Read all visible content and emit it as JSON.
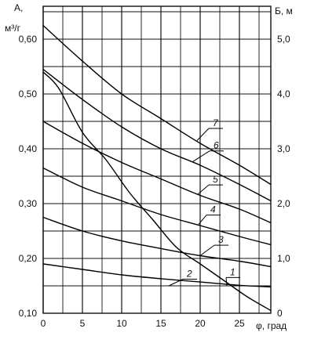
{
  "chart_data": {
    "type": "line",
    "left_axis": {
      "title_line1": "А,",
      "title_line2": "м³/г",
      "ylim": [
        0.1,
        0.66
      ],
      "ticks": [
        0.1,
        0.2,
        0.3,
        0.4,
        0.5,
        0.6
      ],
      "tick_labels": [
        "0,10",
        "0,20",
        "0,30",
        "0,40",
        "0,50",
        "0,60"
      ]
    },
    "right_axis": {
      "title": "Б, м",
      "ylim": [
        0,
        5.6
      ],
      "ticks": [
        0,
        1,
        2,
        3,
        4,
        5
      ],
      "tick_labels": [
        "0",
        "1,0",
        "2,0",
        "3,0",
        "4,0",
        "5,0"
      ]
    },
    "x_axis": {
      "title": "φ, град",
      "xlim": [
        0,
        29
      ],
      "ticks": [
        0,
        5,
        10,
        15,
        20,
        25
      ],
      "tick_labels": [
        "0",
        "5",
        "10",
        "15",
        "20",
        "25"
      ]
    },
    "grid": true,
    "series": [
      {
        "name": "1",
        "axis": "right",
        "x": [
          0,
          2,
          5,
          8,
          11,
          14,
          17,
          20,
          23,
          26,
          29
        ],
        "y": [
          4.4,
          4.1,
          3.3,
          2.8,
          2.2,
          1.7,
          1.2,
          0.9,
          0.6,
          0.3,
          0.05
        ]
      },
      {
        "name": "2",
        "axis": "left",
        "x": [
          0,
          5,
          10,
          15,
          20,
          25,
          29
        ],
        "y": [
          0.19,
          0.18,
          0.17,
          0.163,
          0.157,
          0.151,
          0.148
        ]
      },
      {
        "name": "3",
        "axis": "left",
        "x": [
          0,
          5,
          10,
          15,
          20,
          25,
          29
        ],
        "y": [
          0.275,
          0.25,
          0.232,
          0.218,
          0.205,
          0.195,
          0.185
        ]
      },
      {
        "name": "4",
        "axis": "left",
        "x": [
          0,
          5,
          10,
          15,
          20,
          25,
          29
        ],
        "y": [
          0.365,
          0.33,
          0.305,
          0.28,
          0.26,
          0.24,
          0.225
        ]
      },
      {
        "name": "5",
        "axis": "left",
        "x": [
          0,
          5,
          10,
          15,
          20,
          25,
          29
        ],
        "y": [
          0.45,
          0.41,
          0.375,
          0.345,
          0.315,
          0.29,
          0.265
        ]
      },
      {
        "name": "6",
        "axis": "left",
        "x": [
          0,
          5,
          10,
          15,
          20,
          25,
          29
        ],
        "y": [
          0.545,
          0.49,
          0.44,
          0.4,
          0.37,
          0.335,
          0.305
        ]
      },
      {
        "name": "7",
        "axis": "left",
        "x": [
          0,
          5,
          10,
          15,
          20,
          25,
          29
        ],
        "y": [
          0.625,
          0.56,
          0.5,
          0.455,
          0.41,
          0.37,
          0.335
        ]
      }
    ],
    "curve_labels": [
      {
        "text": "1",
        "x": 23.4,
        "y_left": 0.15,
        "label_x": 23.5,
        "label_y": 0.168
      },
      {
        "text": "2",
        "x": 16.0,
        "y_left": 0.15,
        "label_x": 18.0,
        "label_y": 0.165
      },
      {
        "text": "3",
        "x": 20.0,
        "y_left": 0.205,
        "label_x": 22.0,
        "label_y": 0.227
      },
      {
        "text": "4",
        "x": 19.8,
        "y_left": 0.262,
        "label_x": 21.0,
        "label_y": 0.282
      },
      {
        "text": "5",
        "x": 19.7,
        "y_left": 0.317,
        "label_x": 21.3,
        "label_y": 0.337
      },
      {
        "text": "6",
        "x": 19.0,
        "y_left": 0.376,
        "label_x": 21.4,
        "label_y": 0.399
      },
      {
        "text": "7",
        "x": 19.6,
        "y_left": 0.415,
        "label_x": 21.3,
        "label_y": 0.44
      }
    ]
  }
}
